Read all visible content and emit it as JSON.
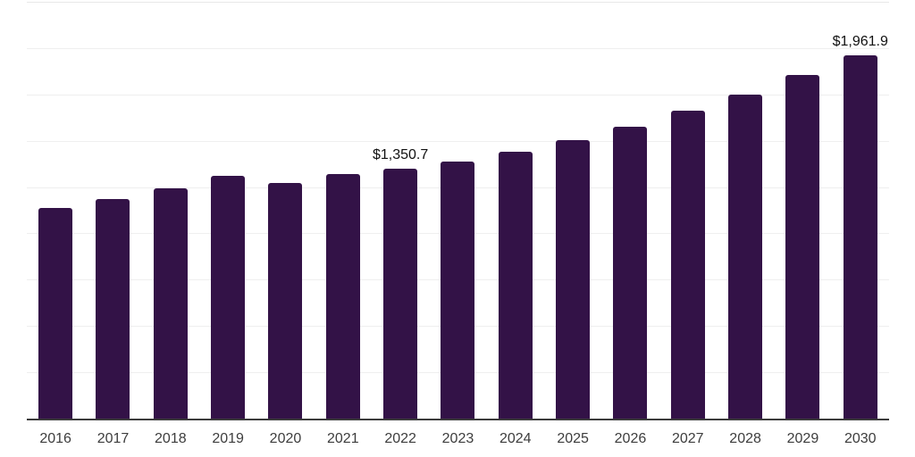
{
  "colors": {
    "background": "#ffffff",
    "bar": "#331247",
    "axis_line": "#3c3c3c",
    "gridline": "#efefef",
    "tick_label": "#3d3d3d",
    "value_label": "#111111"
  },
  "chart_data": {
    "type": "bar",
    "title": "",
    "xlabel": "",
    "ylabel": "",
    "categories": [
      "2016",
      "2017",
      "2018",
      "2019",
      "2020",
      "2021",
      "2022",
      "2023",
      "2024",
      "2025",
      "2026",
      "2027",
      "2028",
      "2029",
      "2030"
    ],
    "values": [
      1139.4,
      1187.4,
      1245.2,
      1312.5,
      1274.0,
      1322.1,
      1350.7,
      1389.5,
      1442.4,
      1504.9,
      1577.0,
      1661.0,
      1747.6,
      1856.0,
      1961.9
    ],
    "point_labels": {
      "2022": "$1,350.7",
      "2030": "$1,961.9"
    },
    "ylim": [
      0,
      2250
    ],
    "gridline_interval": 250,
    "grid": true,
    "legend": false,
    "y_axis_tick_labels_visible": false
  }
}
